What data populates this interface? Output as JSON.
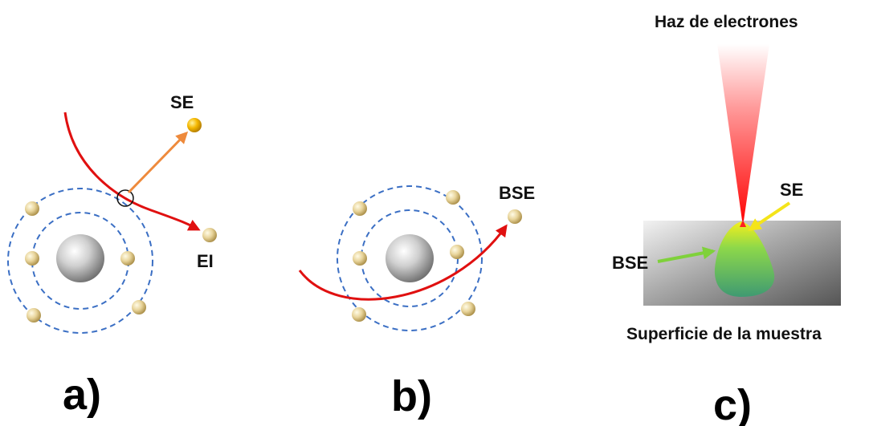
{
  "panel_a": {
    "label": "a)",
    "se_label": "SE",
    "ei_label": "EI"
  },
  "panel_b": {
    "label": "b)",
    "bse_label": "BSE"
  },
  "panel_c": {
    "label": "c)",
    "beam_label": "Haz de electrones",
    "se_label": "SE",
    "bse_label": "BSE",
    "surface_label": "Superficie de la muestra"
  },
  "colors": {
    "orbit": "#3b6fc4",
    "trajectory": "#e01010",
    "se_arrow": "#ee8a3c",
    "electron": "#e8d49a",
    "se_electron": "#f5b800",
    "yellow_arrow": "#f4e41a",
    "green_arrow": "#7fd13b"
  }
}
